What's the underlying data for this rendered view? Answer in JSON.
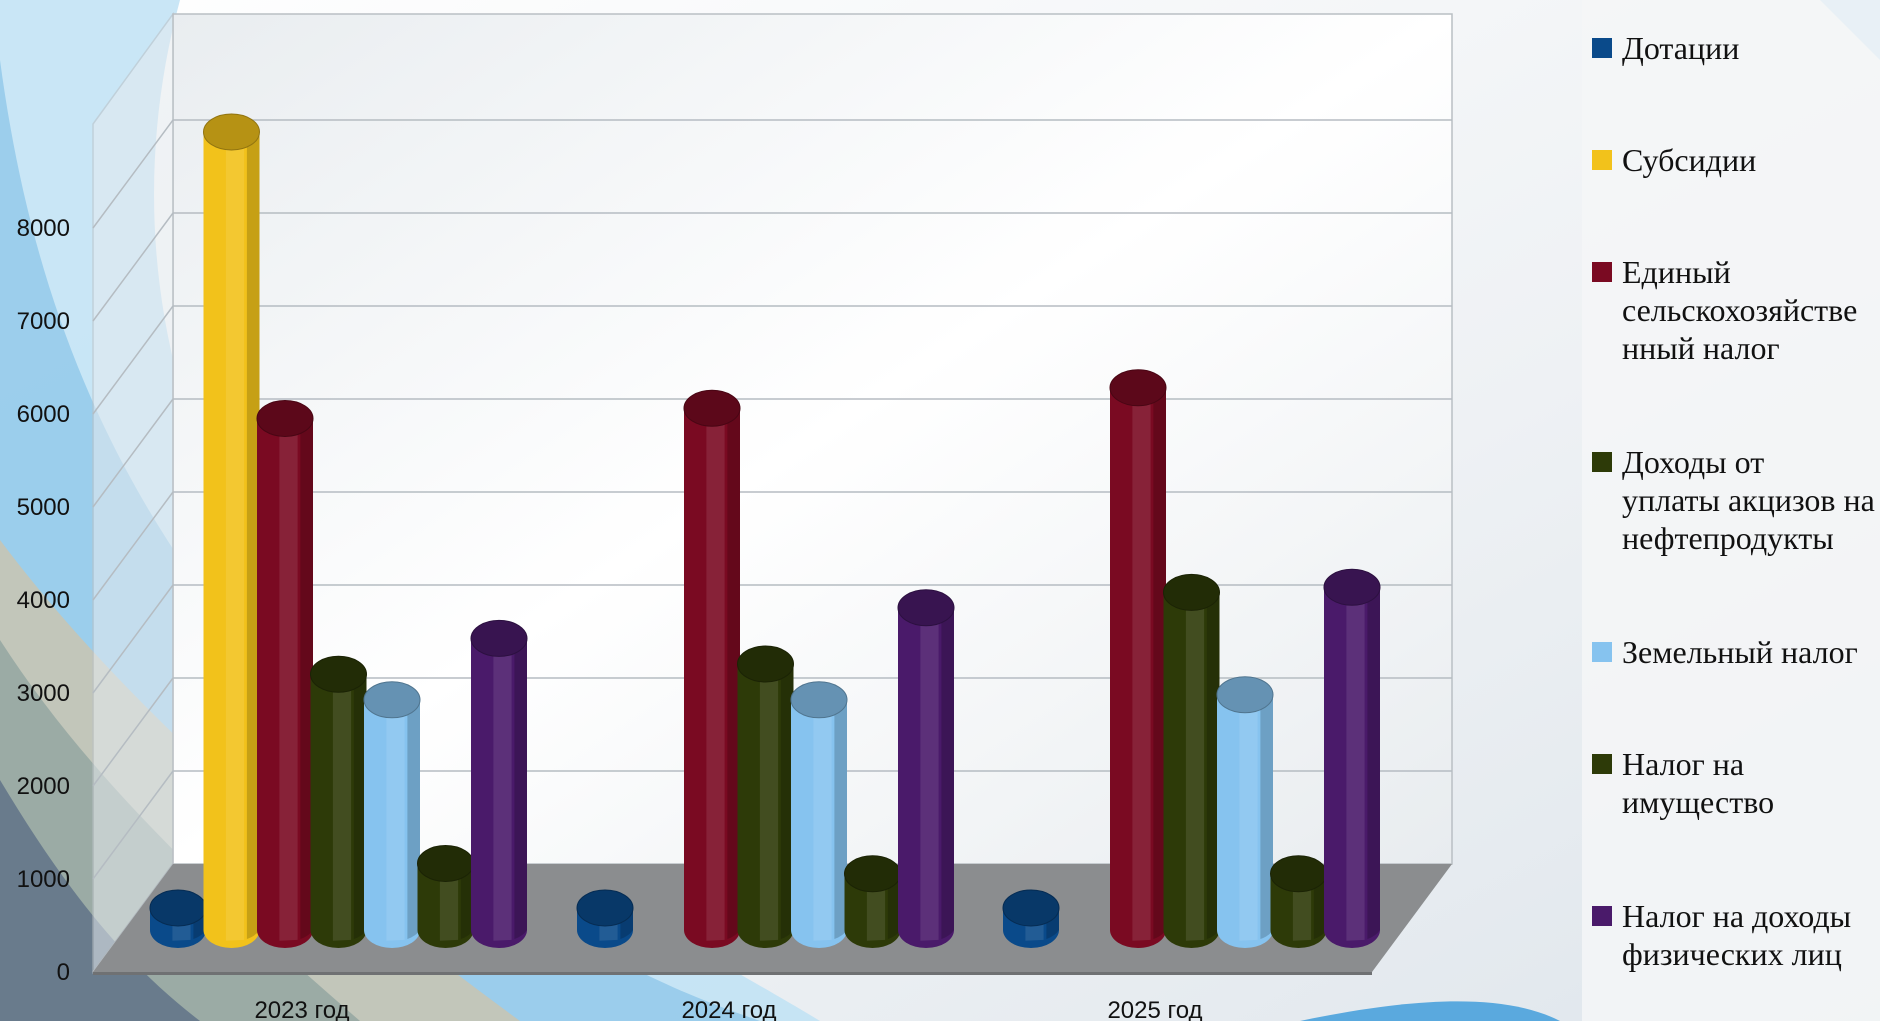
{
  "chart_data": {
    "type": "bar",
    "categories": [
      "2023 год",
      "2024 год",
      "2025 год"
    ],
    "ylim": [
      0,
      8000
    ],
    "y_ticks": [
      "0",
      "1000",
      "2000",
      "3000",
      "4000",
      "5000",
      "6000",
      "7000",
      "8000"
    ],
    "grid": true,
    "legend_position": "right",
    "series": [
      {
        "name": "Дотации",
        "color": "#0a4a8a",
        "values": [
          200,
          200,
          200
        ]
      },
      {
        "name": "Субсидии",
        "color": "#f2c21b",
        "values": [
          7800,
          0,
          0
        ]
      },
      {
        "name": "Единый сельскохозяйственный налог",
        "color": "#7a0a22",
        "values": [
          5000,
          5100,
          5300
        ]
      },
      {
        "name": "Доходы от уплаты акцизов на нефтепродукты",
        "color": "#2d3a08",
        "values": [
          2500,
          2600,
          3300
        ]
      },
      {
        "name": "Земельный налог",
        "color": "#86c3ef",
        "values": [
          2250,
          2250,
          2300
        ]
      },
      {
        "name": "Налог на имущество",
        "color": "#2d3a08",
        "values": [
          650,
          550,
          550
        ]
      },
      {
        "name": "Налог на доходы физических лиц",
        "color": "#4a1a6a",
        "values": [
          2850,
          3150,
          3350
        ]
      }
    ]
  },
  "legend": {
    "items": [
      {
        "lines": [
          "Дотации"
        ],
        "color": "#0a4a8a"
      },
      {
        "lines": [
          "Субсидии"
        ],
        "color": "#f2c21b"
      },
      {
        "lines": [
          "Единый",
          "сельскохозяйстве",
          "нный налог"
        ],
        "color": "#7a0a22"
      },
      {
        "lines": [
          "Доходы от",
          "уплаты акцизов на",
          "нефтепродукты"
        ],
        "color": "#2d3a08"
      },
      {
        "lines": [
          "Земельный налог"
        ],
        "color": "#86c3ef"
      },
      {
        "lines": [
          "Налог на",
          "имущество"
        ],
        "color": "#2d3a08"
      },
      {
        "lines": [
          "Налог на доходы",
          "физических лиц"
        ],
        "color": "#4a1a6a"
      }
    ]
  }
}
